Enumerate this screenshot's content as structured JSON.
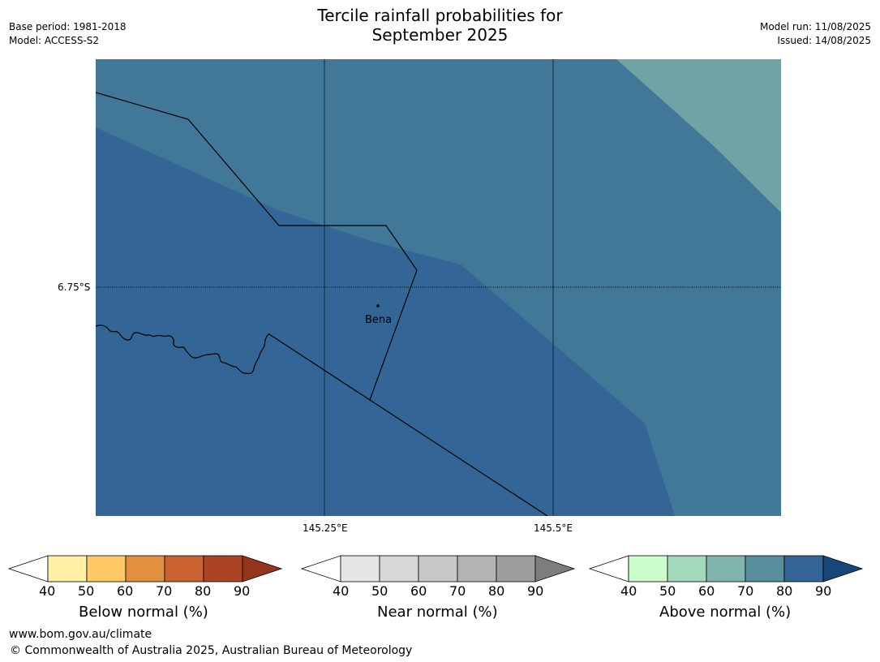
{
  "title_line1": "Tercile rainfall probabilities for",
  "title_line2": "September 2025",
  "base_period": "Base period: 1981-2018",
  "model": "Model: ACCESS-S2",
  "model_run": "Model run: 11/08/2025",
  "issued": "Issued: 14/08/2025",
  "map": {
    "lat_label": "6.75°S",
    "lon_labels": [
      "145.25°E",
      "145.5°E"
    ],
    "place": "Bena",
    "colors": {
      "above_60_70": "#417897",
      "above_70_80": "#336596",
      "above_50_60": "#6fa3a6"
    }
  },
  "legends": [
    {
      "caption": "Below normal (%)",
      "ticks": [
        "40",
        "50",
        "60",
        "70",
        "80",
        "90"
      ],
      "colors": [
        "#fff0a6",
        "#fec965",
        "#e0903f",
        "#cb6231",
        "#ab4423",
        "#94341d"
      ]
    },
    {
      "caption": "Near normal (%)",
      "ticks": [
        "40",
        "50",
        "60",
        "70",
        "80",
        "90"
      ],
      "colors": [
        "#e6e6e6",
        "#d8d8d8",
        "#c8c8c8",
        "#b4b4b4",
        "#9e9e9e",
        "#7d7d7d"
      ]
    },
    {
      "caption": "Above normal (%)",
      "ticks": [
        "40",
        "50",
        "60",
        "70",
        "80",
        "90"
      ],
      "colors": [
        "#cbfccb",
        "#a4d8bb",
        "#80b4ac",
        "#588f9c",
        "#336596",
        "#17477a"
      ]
    }
  ],
  "footer_url": "www.bom.gov.au/climate",
  "footer_copyright": "© Commonwealth of Australia 2025, Australian Bureau of Meteorology"
}
